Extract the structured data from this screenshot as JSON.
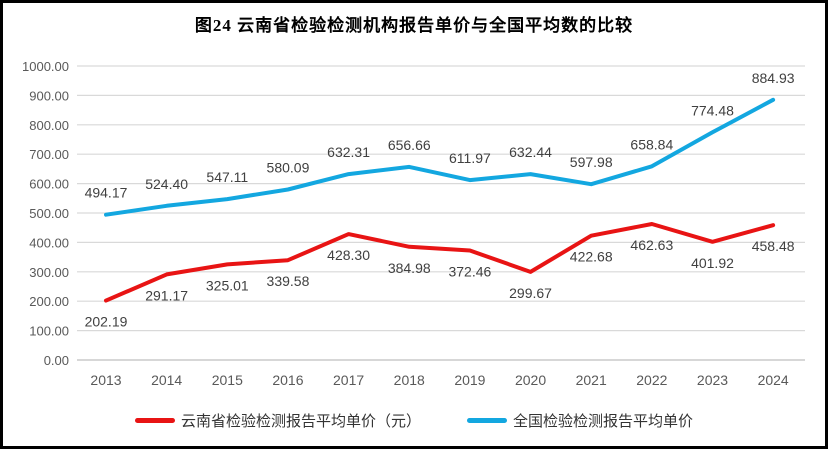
{
  "chart_data": {
    "type": "line",
    "title": "图24 云南省检验检测机构报告单价与全国平均数的比较",
    "categories": [
      "2013",
      "2014",
      "2015",
      "2016",
      "2017",
      "2018",
      "2019",
      "2020",
      "2021",
      "2022",
      "2023",
      "2024"
    ],
    "series": [
      {
        "name": "云南省检验检测报告平均单价（元）",
        "color": "#E81414",
        "label_position": "below",
        "values": [
          202.19,
          291.17,
          325.01,
          339.58,
          428.3,
          384.98,
          372.46,
          299.67,
          422.68,
          462.63,
          401.92,
          458.48
        ],
        "labels": [
          "202.19",
          "291.17",
          "325.01",
          "339.58",
          "428.30",
          "384.98",
          "372.46",
          "299.67",
          "422.68",
          "462.63",
          "401.92",
          "458.48"
        ]
      },
      {
        "name": "全国检验检测报告平均单价",
        "color": "#13A7E0",
        "label_position": "above",
        "values": [
          494.17,
          524.4,
          547.11,
          580.09,
          632.31,
          656.66,
          611.97,
          632.44,
          597.98,
          658.84,
          774.48,
          884.93
        ],
        "labels": [
          "494.17",
          "524.40",
          "547.11",
          "580.09",
          "632.31",
          "656.66",
          "611.97",
          "632.44",
          "597.98",
          "658.84",
          "774.48",
          "884.93"
        ]
      }
    ],
    "ylim": [
      0,
      1000
    ],
    "ytick_step": 100,
    "ytick_labels": [
      "0.00",
      "100.00",
      "200.00",
      "300.00",
      "400.00",
      "500.00",
      "600.00",
      "700.00",
      "800.00",
      "900.00",
      "1000.00"
    ],
    "grid": "horizontal",
    "legend_position": "bottom",
    "colors": {
      "gridline": "#D9D9D9",
      "axis_line": "#BFBFBF",
      "tick_text": "#595959",
      "data_label_text": "#404040"
    }
  }
}
